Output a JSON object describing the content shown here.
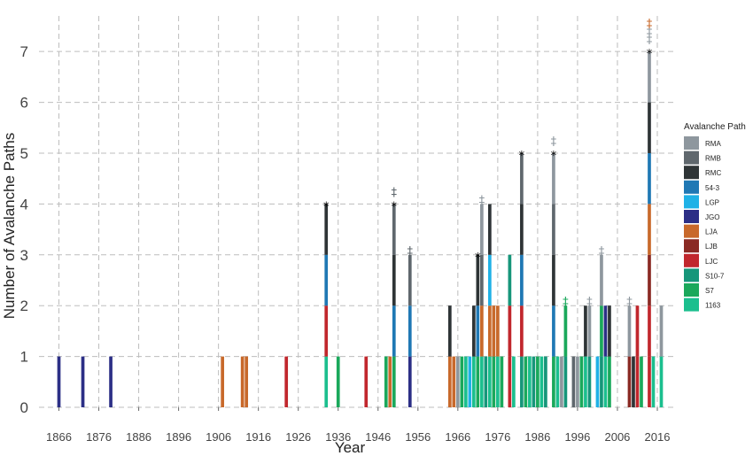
{
  "chart_data": {
    "type": "bar",
    "title": "",
    "xlabel": "Year",
    "ylabel": "Number of Avalanche Paths",
    "xlim": [
      1861,
      2020
    ],
    "ylim": [
      0,
      7.7
    ],
    "x_ticks": [
      1866,
      1876,
      1886,
      1896,
      1906,
      1916,
      1926,
      1936,
      1946,
      1956,
      1966,
      1976,
      1986,
      1996,
      2006,
      2016
    ],
    "y_ticks": [
      0,
      1,
      2,
      3,
      4,
      5,
      6,
      7
    ],
    "grid": true,
    "legend": {
      "title": "Avalanche Path",
      "placement": "right",
      "entries": [
        {
          "name": "RMA",
          "color": "#8e979e"
        },
        {
          "name": "RMB",
          "color": "#5f676d"
        },
        {
          "name": "RMC",
          "color": "#2e3436"
        },
        {
          "name": "54-3",
          "color": "#1f78b4"
        },
        {
          "name": "LGP",
          "color": "#1fb1e6"
        },
        {
          "name": "JGO",
          "color": "#2c2f86"
        },
        {
          "name": "LJA",
          "color": "#c8692b"
        },
        {
          "name": "LJB",
          "color": "#8a2a24"
        },
        {
          "name": "LJC",
          "color": "#c1272d"
        },
        {
          "name": "S10-7",
          "color": "#16967a"
        },
        {
          "name": "S7",
          "color": "#1aa85b"
        },
        {
          "name": "1163",
          "color": "#1bbf8e"
        }
      ]
    },
    "bars": [
      {
        "year": 1866,
        "paths": [
          "JGO"
        ]
      },
      {
        "year": 1872,
        "paths": [
          "JGO"
        ]
      },
      {
        "year": 1879,
        "paths": [
          "JGO"
        ]
      },
      {
        "year": 1907,
        "paths": [
          "LJA"
        ]
      },
      {
        "year": 1912,
        "paths": [
          "LJA"
        ]
      },
      {
        "year": 1913,
        "paths": [
          "LJA"
        ]
      },
      {
        "year": 1923,
        "paths": [
          "LJC"
        ]
      },
      {
        "year": 1933,
        "paths": [
          "1163",
          "LJC",
          "54-3",
          "RMC"
        ],
        "annotation": "*"
      },
      {
        "year": 1936,
        "paths": [
          "S7"
        ]
      },
      {
        "year": 1943,
        "paths": [
          "LJC"
        ]
      },
      {
        "year": 1948,
        "paths": [
          "S7"
        ]
      },
      {
        "year": 1949,
        "paths": [
          "LJA"
        ]
      },
      {
        "year": 1950,
        "paths": [
          "S7",
          "54-3",
          "RMC",
          "RMB"
        ],
        "annotation": "*‡"
      },
      {
        "year": 1954,
        "paths": [
          "JGO",
          "54-3",
          "RMB"
        ],
        "annotation": "‡"
      },
      {
        "year": 1964,
        "paths": [
          "LJA",
          "RMC"
        ]
      },
      {
        "year": 1965,
        "paths": [
          "LJA"
        ]
      },
      {
        "year": 1966,
        "paths": [
          "RMA"
        ]
      },
      {
        "year": 1967,
        "paths": [
          "S7"
        ]
      },
      {
        "year": 1968,
        "paths": [
          "1163"
        ]
      },
      {
        "year": 1969,
        "paths": [
          "LGP"
        ]
      },
      {
        "year": 1970,
        "paths": [
          "1163",
          "RMC"
        ]
      },
      {
        "year": 1971,
        "paths": [
          "S7",
          "54-3",
          "RMC"
        ],
        "annotation": "*"
      },
      {
        "year": 1972,
        "paths": [
          "1163",
          "LJA",
          "RMB",
          "RMA"
        ],
        "annotation": "‡"
      },
      {
        "year": 1973,
        "paths": [
          "S10-7"
        ]
      },
      {
        "year": 1974,
        "paths": [
          "1163",
          "LJA",
          "LGP",
          "RMC"
        ]
      },
      {
        "year": 1975,
        "paths": [
          "S7",
          "LJA"
        ]
      },
      {
        "year": 1976,
        "paths": [
          "1163",
          "LJA"
        ]
      },
      {
        "year": 1977,
        "paths": [
          "S7"
        ]
      },
      {
        "year": 1979,
        "paths": [
          "LJC",
          "LJC",
          "S10-7"
        ]
      },
      {
        "year": 1980,
        "paths": [
          "1163"
        ]
      },
      {
        "year": 1982,
        "paths": [
          "S10-7",
          "LJC",
          "54-3",
          "RMC",
          "RMB"
        ],
        "annotation": "*"
      },
      {
        "year": 1983,
        "paths": [
          "S7"
        ]
      },
      {
        "year": 1984,
        "paths": [
          "1163"
        ]
      },
      {
        "year": 1985,
        "paths": [
          "S10-7"
        ]
      },
      {
        "year": 1986,
        "paths": [
          "S7"
        ]
      },
      {
        "year": 1987,
        "paths": [
          "1163"
        ]
      },
      {
        "year": 1988,
        "paths": [
          "S10-7"
        ]
      },
      {
        "year": 1990,
        "paths": [
          "S7",
          "54-3",
          "RMC",
          "RMB",
          "RMA"
        ],
        "annotation": "*‡"
      },
      {
        "year": 1991,
        "paths": [
          "1163"
        ]
      },
      {
        "year": 1992,
        "paths": [
          "RMA"
        ]
      },
      {
        "year": 1993,
        "paths": [
          "S10-7",
          "S7"
        ],
        "annotation": "‡"
      },
      {
        "year": 1995,
        "paths": [
          "RMB"
        ]
      },
      {
        "year": 1996,
        "paths": [
          "RMA"
        ]
      },
      {
        "year": 1997,
        "paths": [
          "S7"
        ]
      },
      {
        "year": 1998,
        "paths": [
          "1163",
          "RMC"
        ]
      },
      {
        "year": 1999,
        "paths": [
          "S10-7",
          "RMA"
        ],
        "annotation": "‡"
      },
      {
        "year": 2001,
        "paths": [
          "LGP"
        ]
      },
      {
        "year": 2002,
        "paths": [
          "S10-7",
          "S7",
          "RMA"
        ],
        "annotation": "‡"
      },
      {
        "year": 2003,
        "paths": [
          "1163",
          "JGO"
        ]
      },
      {
        "year": 2004,
        "paths": [
          "S7",
          "RMC"
        ]
      },
      {
        "year": 2009,
        "paths": [
          "LJB",
          "RMA"
        ],
        "annotation": "‡"
      },
      {
        "year": 2010,
        "paths": [
          "RMC"
        ]
      },
      {
        "year": 2011,
        "paths": [
          "LJC",
          "LJC"
        ]
      },
      {
        "year": 2012,
        "paths": [
          "S7"
        ]
      },
      {
        "year": 2014,
        "paths": [
          "LJC",
          "LJC",
          "LJB",
          "LJA",
          "54-3",
          "RMC",
          "RMA"
        ],
        "annotation": "*‡‡‡"
      },
      {
        "year": 2015,
        "paths": [
          "1163"
        ]
      },
      {
        "year": 2017,
        "paths": [
          "1163",
          "RMA"
        ]
      }
    ]
  }
}
